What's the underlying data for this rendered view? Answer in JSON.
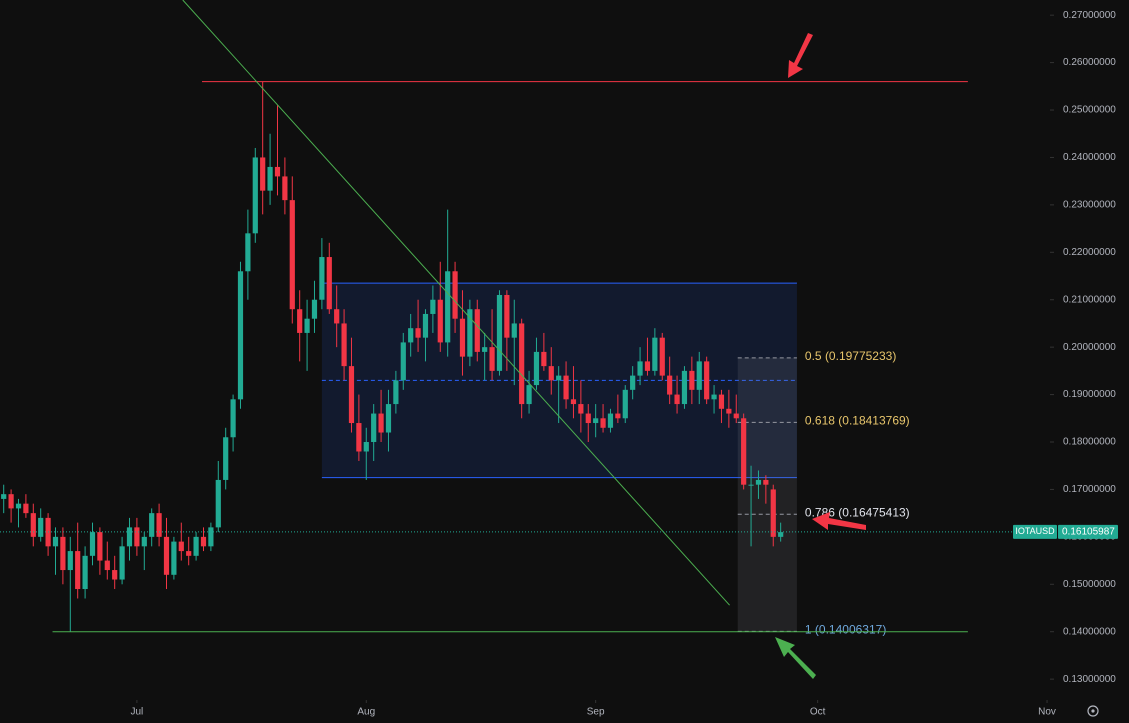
{
  "chart_data": {
    "type": "candlestick",
    "symbol": "IOTAUSD",
    "last_price": {
      "value": 0.16105987,
      "label": "0.16105987"
    },
    "up_color": "#22ab94",
    "down_color": "#f23645",
    "xlim": [
      -18.5,
      123.4
    ],
    "xticks": [
      {
        "value": 0,
        "label": "Jul"
      },
      {
        "value": 31,
        "label": "Aug"
      },
      {
        "value": 62,
        "label": "Sep"
      },
      {
        "value": 92,
        "label": "Oct"
      },
      {
        "value": 123,
        "label": "Nov"
      }
    ],
    "ylim": [
      0.1256,
      0.2732
    ],
    "yticks": [
      {
        "value": 0.13,
        "label": "0.13000000"
      },
      {
        "value": 0.14,
        "label": "0.14000000"
      },
      {
        "value": 0.15,
        "label": "0.15000000"
      },
      {
        "value": 0.16,
        "label": "0.16000000"
      },
      {
        "value": 0.17,
        "label": "0.17000000"
      },
      {
        "value": 0.18,
        "label": "0.18000000"
      },
      {
        "value": 0.19,
        "label": "0.19000000"
      },
      {
        "value": 0.2,
        "label": "0.20000000"
      },
      {
        "value": 0.21,
        "label": "0.21000000"
      },
      {
        "value": 0.22,
        "label": "0.22000000"
      },
      {
        "value": 0.23,
        "label": "0.23000000"
      },
      {
        "value": 0.24,
        "label": "0.24000000"
      },
      {
        "value": 0.25,
        "label": "0.25000000"
      },
      {
        "value": 0.26,
        "label": "0.26000000"
      },
      {
        "value": 0.27,
        "label": "0.27000000"
      }
    ],
    "x": [
      -18,
      -17,
      -16,
      -15,
      -14,
      -13,
      -12,
      -11,
      -10,
      -9,
      -8,
      -7,
      -6,
      -5,
      -4,
      -3,
      -2,
      -1,
      0,
      1,
      2,
      3,
      4,
      5,
      6,
      7,
      8,
      9,
      10,
      11,
      12,
      13,
      14,
      15,
      16,
      17,
      18,
      19,
      20,
      21,
      22,
      23,
      24,
      25,
      26,
      27,
      28,
      29,
      30,
      31,
      32,
      33,
      34,
      35,
      36,
      37,
      38,
      39,
      40,
      41,
      42,
      43,
      44,
      45,
      46,
      47,
      48,
      49,
      50,
      51,
      52,
      53,
      54,
      55,
      56,
      57,
      58,
      59,
      60,
      61,
      62,
      63,
      64,
      65,
      66,
      67,
      68,
      69,
      70,
      71,
      72,
      73,
      74,
      75,
      76,
      77,
      78,
      79,
      80,
      81,
      82,
      83,
      84,
      85,
      86,
      87
    ],
    "open": [
      0.168,
      0.169,
      0.166,
      0.167,
      0.165,
      0.16,
      0.164,
      0.158,
      0.16,
      0.153,
      0.157,
      0.149,
      0.156,
      0.161,
      0.155,
      0.153,
      0.151,
      0.158,
      0.162,
      0.158,
      0.16,
      0.165,
      0.16,
      0.152,
      0.159,
      0.157,
      0.156,
      0.16,
      0.158,
      0.162,
      0.172,
      0.181,
      0.189,
      0.216,
      0.224,
      0.24,
      0.233,
      0.238,
      0.236,
      0.231,
      0.208,
      0.203,
      0.206,
      0.21,
      0.219,
      0.208,
      0.205,
      0.196,
      0.184,
      0.178,
      0.18,
      0.186,
      0.182,
      0.188,
      0.193,
      0.201,
      0.204,
      0.202,
      0.207,
      0.21,
      0.201,
      0.216,
      0.206,
      0.198,
      0.208,
      0.199,
      0.2,
      0.195,
      0.211,
      0.202,
      0.205,
      0.188,
      0.192,
      0.199,
      0.196,
      0.193,
      0.194,
      0.189,
      0.188,
      0.186,
      0.184,
      0.185,
      0.183,
      0.186,
      0.185,
      0.191,
      0.194,
      0.197,
      0.195,
      0.202,
      0.194,
      0.19,
      0.188,
      0.195,
      0.191,
      0.197,
      0.189,
      0.19,
      0.187,
      0.186,
      0.185,
      0.171,
      0.171,
      0.172,
      0.17,
      0.16
    ],
    "high": [
      0.171,
      0.17,
      0.168,
      0.169,
      0.167,
      0.166,
      0.165,
      0.162,
      0.162,
      0.16,
      0.163,
      0.158,
      0.163,
      0.162,
      0.159,
      0.156,
      0.16,
      0.164,
      0.164,
      0.161,
      0.166,
      0.167,
      0.164,
      0.16,
      0.163,
      0.16,
      0.161,
      0.162,
      0.163,
      0.176,
      0.183,
      0.19,
      0.218,
      0.229,
      0.242,
      0.256,
      0.245,
      0.251,
      0.24,
      0.236,
      0.212,
      0.21,
      0.214,
      0.223,
      0.222,
      0.213,
      0.208,
      0.202,
      0.19,
      0.183,
      0.188,
      0.191,
      0.191,
      0.195,
      0.203,
      0.207,
      0.21,
      0.208,
      0.213,
      0.218,
      0.229,
      0.218,
      0.212,
      0.21,
      0.21,
      0.203,
      0.208,
      0.212,
      0.212,
      0.21,
      0.206,
      0.195,
      0.202,
      0.203,
      0.2,
      0.196,
      0.197,
      0.196,
      0.193,
      0.188,
      0.188,
      0.188,
      0.187,
      0.19,
      0.192,
      0.196,
      0.2,
      0.202,
      0.204,
      0.203,
      0.198,
      0.194,
      0.196,
      0.198,
      0.199,
      0.198,
      0.192,
      0.191,
      0.191,
      0.19,
      0.186,
      0.175,
      0.174,
      0.173,
      0.171,
      0.163
    ],
    "low": [
      0.165,
      0.163,
      0.162,
      0.164,
      0.158,
      0.159,
      0.156,
      0.152,
      0.15,
      0.14,
      0.147,
      0.147,
      0.154,
      0.152,
      0.151,
      0.149,
      0.15,
      0.155,
      0.156,
      0.153,
      0.158,
      0.158,
      0.149,
      0.151,
      0.155,
      0.154,
      0.155,
      0.157,
      0.157,
      0.161,
      0.17,
      0.178,
      0.187,
      0.21,
      0.222,
      0.228,
      0.23,
      0.232,
      0.228,
      0.205,
      0.197,
      0.195,
      0.203,
      0.208,
      0.207,
      0.2,
      0.193,
      0.182,
      0.176,
      0.172,
      0.176,
      0.18,
      0.178,
      0.186,
      0.191,
      0.198,
      0.199,
      0.197,
      0.203,
      0.199,
      0.198,
      0.203,
      0.194,
      0.196,
      0.197,
      0.193,
      0.193,
      0.194,
      0.195,
      0.192,
      0.185,
      0.186,
      0.191,
      0.195,
      0.19,
      0.184,
      0.187,
      0.185,
      0.182,
      0.18,
      0.181,
      0.182,
      0.182,
      0.184,
      0.184,
      0.189,
      0.192,
      0.194,
      0.194,
      0.193,
      0.188,
      0.186,
      0.187,
      0.188,
      0.188,
      0.188,
      0.186,
      0.184,
      0.183,
      0.184,
      0.17,
      0.158,
      0.168,
      0.167,
      0.158,
      0.159
    ],
    "close": [
      0.169,
      0.166,
      0.167,
      0.165,
      0.16,
      0.164,
      0.158,
      0.16,
      0.153,
      0.157,
      0.149,
      0.156,
      0.161,
      0.155,
      0.153,
      0.151,
      0.158,
      0.162,
      0.158,
      0.16,
      0.165,
      0.16,
      0.152,
      0.159,
      0.157,
      0.156,
      0.16,
      0.158,
      0.162,
      0.172,
      0.181,
      0.189,
      0.216,
      0.224,
      0.24,
      0.233,
      0.238,
      0.236,
      0.231,
      0.208,
      0.203,
      0.206,
      0.21,
      0.219,
      0.208,
      0.205,
      0.196,
      0.184,
      0.178,
      0.18,
      0.186,
      0.182,
      0.188,
      0.193,
      0.201,
      0.204,
      0.202,
      0.207,
      0.21,
      0.201,
      0.216,
      0.206,
      0.198,
      0.208,
      0.199,
      0.2,
      0.195,
      0.211,
      0.202,
      0.205,
      0.188,
      0.192,
      0.199,
      0.196,
      0.193,
      0.194,
      0.189,
      0.188,
      0.186,
      0.184,
      0.185,
      0.183,
      0.186,
      0.185,
      0.191,
      0.194,
      0.197,
      0.195,
      0.202,
      0.194,
      0.19,
      0.188,
      0.195,
      0.191,
      0.197,
      0.189,
      0.19,
      0.187,
      0.186,
      0.185,
      0.171,
      0.171,
      0.172,
      0.171,
      0.16,
      0.161
    ],
    "levels": [
      {
        "value": 0.256,
        "from": 8.8,
        "to": 112.3,
        "color": "#f23645"
      },
      {
        "value": 0.14,
        "from": -11.4,
        "to": 112.3,
        "color": "#4caf50"
      }
    ],
    "trendline": {
      "x": [
        6.2,
        80.1
      ],
      "y": [
        0.2732,
        0.1456
      ],
      "color": "#4caf50"
    },
    "range_box": {
      "x": [
        25,
        89.2
      ],
      "y": [
        0.1725,
        0.2135
      ],
      "mid": 0.193,
      "color": "#2962ff"
    },
    "fib_box": {
      "x": [
        81.2,
        89.2
      ],
      "y": [
        0.14006317,
        0.19775233
      ]
    },
    "fib": [
      {
        "label": "0.5 (0.19775233)",
        "value": 0.19775233,
        "color": "#e8c66c"
      },
      {
        "label": "0.618 (0.18413769)",
        "value": 0.18413769,
        "color": "#e8c66c"
      },
      {
        "label": "0.786 (0.16475413)",
        "value": 0.16475413,
        "color": "#e0e3eb"
      },
      {
        "label": "1 (0.14006317)",
        "value": 0.14006317,
        "color": "#6fa8dc"
      }
    ]
  }
}
